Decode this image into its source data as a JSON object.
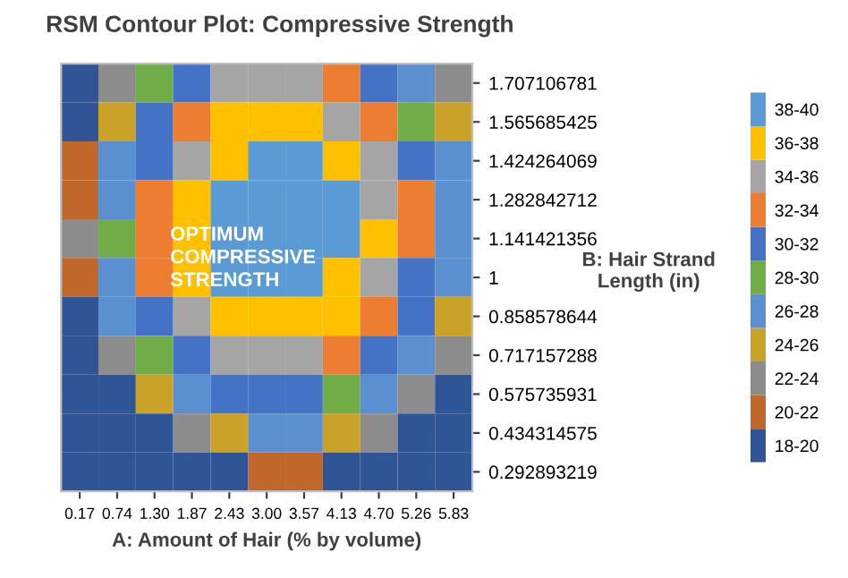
{
  "chart_data": {
    "type": "heatmap",
    "title": "RSM Contour Plot: Compressive Strength",
    "xlabel": "A: Amount of Hair (% by volume)",
    "ylabel": "B: Hair Strand Length (in)",
    "categories": [
      "0.17",
      "0.74",
      "1.30",
      "1.87",
      "2.43",
      "3.00",
      "3.57",
      "4.13",
      "4.70",
      "5.26",
      "5.83"
    ],
    "y_categories": [
      "1.707106781",
      "1.565685425",
      "1.424264069",
      "1.282842712",
      "1.141421356",
      "1",
      "0.858578644",
      "0.717157288",
      "0.575735931",
      "0.434314575",
      "0.292893219"
    ],
    "cells": [
      [
        19,
        23,
        29,
        31,
        35,
        35,
        35,
        33,
        31,
        27,
        23
      ],
      [
        19,
        25,
        31,
        33,
        37,
        37,
        37,
        35,
        33,
        29,
        25
      ],
      [
        21,
        27,
        31,
        35,
        37,
        39,
        39,
        37,
        35,
        31,
        27
      ],
      [
        21,
        27,
        33,
        37,
        39,
        39,
        39,
        39,
        35,
        33,
        27
      ],
      [
        23,
        29,
        33,
        37,
        39,
        39,
        39,
        39,
        37,
        33,
        27
      ],
      [
        21,
        27,
        33,
        37,
        39,
        39,
        39,
        37,
        35,
        31,
        27
      ],
      [
        19,
        27,
        31,
        35,
        37,
        37,
        37,
        37,
        33,
        31,
        25
      ],
      [
        19,
        23,
        29,
        31,
        35,
        35,
        35,
        33,
        31,
        27,
        23
      ],
      [
        19,
        19,
        25,
        27,
        31,
        31,
        31,
        29,
        27,
        23,
        19
      ],
      [
        19,
        19,
        19,
        23,
        25,
        27,
        27,
        25,
        23,
        19,
        19
      ],
      [
        19,
        19,
        19,
        19,
        19,
        21,
        21,
        19,
        19,
        19,
        19
      ]
    ],
    "clim": [
      18,
      40
    ],
    "cticks": [
      {
        "value": 19,
        "label": "18-20"
      },
      {
        "value": 21,
        "label": "20-22"
      },
      {
        "value": 23,
        "label": "22-24"
      },
      {
        "value": 25,
        "label": "24-26"
      },
      {
        "value": 27,
        "label": "26-28"
      },
      {
        "value": 29,
        "label": "28-30"
      },
      {
        "value": 31,
        "label": "30-32"
      },
      {
        "value": 33,
        "label": "32-34"
      },
      {
        "value": 35,
        "label": "34-36"
      },
      {
        "value": 37,
        "label": "36-38"
      },
      {
        "value": 39,
        "label": "38-40"
      }
    ],
    "colors": [
      "#2f5597",
      "#c0682c",
      "#8c8c8c",
      "#c9a227",
      "#5a8fd0",
      "#70ad47",
      "#4472c4",
      "#ed7d31",
      "#a5a5a5",
      "#ffc000",
      "#5b9bd5"
    ],
    "annotations": [
      "OPTIMUM\nCOMPRESSIVE\nSTRENGTH"
    ]
  }
}
